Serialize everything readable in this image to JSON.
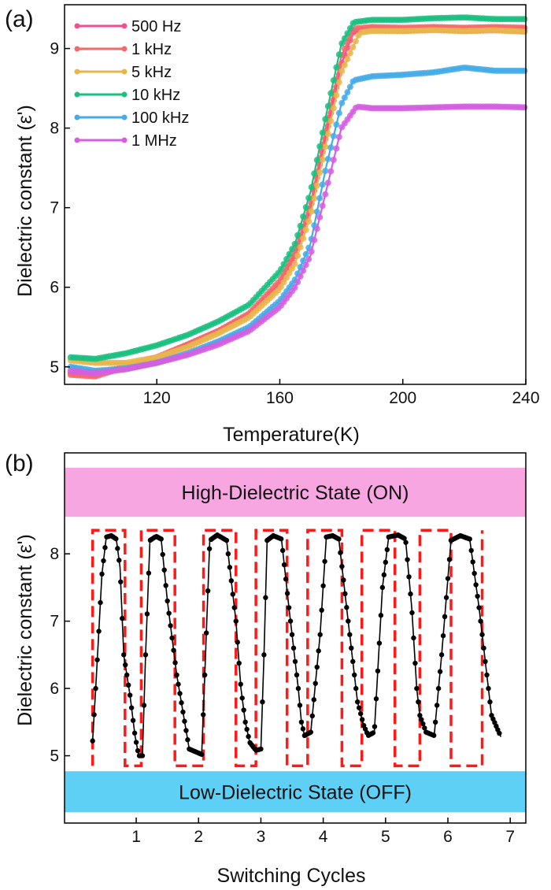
{
  "chart_data": [
    {
      "panel_label": "(a)",
      "type": "line",
      "xlabel": "Temperature(K)",
      "ylabel": "Dielectric constant (ε')",
      "xlim": [
        90,
        240
      ],
      "ylim": [
        4.78,
        9.55
      ],
      "xticks": [
        120,
        160,
        200,
        240
      ],
      "yticks": [
        5,
        6,
        7,
        8,
        9
      ],
      "grid": false,
      "legend_position": "top-left",
      "series": [
        {
          "name": "500 Hz",
          "color": "#f0508f",
          "x": [
            92,
            100,
            110,
            120,
            130,
            140,
            150,
            160,
            165,
            170,
            175,
            180,
            184,
            190,
            200,
            210,
            220,
            230,
            240
          ],
          "y": [
            4.92,
            4.9,
            5.0,
            5.12,
            5.28,
            5.45,
            5.65,
            6.05,
            6.4,
            7.0,
            7.9,
            8.8,
            9.22,
            9.24,
            9.22,
            9.24,
            9.22,
            9.23,
            9.22
          ]
        },
        {
          "name": "1 kHz",
          "color": "#f46a6a",
          "x": [
            92,
            100,
            110,
            120,
            130,
            140,
            150,
            160,
            165,
            170,
            175,
            180,
            184,
            190,
            200,
            210,
            220,
            230,
            240
          ],
          "y": [
            4.9,
            4.88,
            5.0,
            5.12,
            5.28,
            5.45,
            5.67,
            6.08,
            6.45,
            7.05,
            8.0,
            8.9,
            9.25,
            9.27,
            9.26,
            9.27,
            9.26,
            9.27,
            9.26
          ]
        },
        {
          "name": "5 kHz",
          "color": "#e9b64e",
          "x": [
            92,
            100,
            110,
            120,
            130,
            140,
            150,
            160,
            165,
            170,
            175,
            180,
            186,
            190,
            200,
            210,
            220,
            230,
            240
          ],
          "y": [
            5.08,
            5.05,
            5.05,
            5.12,
            5.25,
            5.42,
            5.62,
            5.98,
            6.3,
            6.9,
            7.8,
            8.7,
            9.2,
            9.22,
            9.22,
            9.23,
            9.22,
            9.23,
            9.21
          ]
        },
        {
          "name": "10 kHz",
          "color": "#1bbf80",
          "x": [
            92,
            100,
            110,
            120,
            130,
            140,
            150,
            160,
            165,
            170,
            175,
            180,
            184,
            190,
            200,
            210,
            220,
            230,
            240
          ],
          "y": [
            5.12,
            5.1,
            5.17,
            5.27,
            5.4,
            5.57,
            5.78,
            6.2,
            6.55,
            7.2,
            8.15,
            9.05,
            9.33,
            9.36,
            9.36,
            9.38,
            9.39,
            9.37,
            9.37
          ]
        },
        {
          "name": "100 kHz",
          "color": "#45abe8",
          "x": [
            92,
            100,
            110,
            120,
            130,
            140,
            150,
            160,
            165,
            170,
            175,
            180,
            184,
            190,
            200,
            210,
            220,
            230,
            240
          ],
          "y": [
            5.0,
            4.95,
            4.98,
            5.05,
            5.17,
            5.32,
            5.5,
            5.83,
            6.1,
            6.55,
            7.5,
            8.3,
            8.6,
            8.65,
            8.67,
            8.7,
            8.76,
            8.72,
            8.72
          ]
        },
        {
          "name": "1 MHz",
          "color": "#d35fe0",
          "x": [
            92,
            100,
            110,
            120,
            130,
            140,
            150,
            160,
            165,
            170,
            175,
            180,
            185,
            190,
            200,
            210,
            220,
            230,
            240
          ],
          "y": [
            4.95,
            4.92,
            4.97,
            5.05,
            5.15,
            5.28,
            5.45,
            5.75,
            6.0,
            6.4,
            7.2,
            8.0,
            8.27,
            8.25,
            8.25,
            8.26,
            8.27,
            8.27,
            8.26
          ]
        }
      ]
    },
    {
      "panel_label": "(b)",
      "type": "line",
      "xlabel": "Switching Cycles",
      "ylabel": "Dielectric constant (ε')",
      "xlim": [
        -0.15,
        7.25
      ],
      "ylim": [
        4.0,
        9.5
      ],
      "xticks": [
        1,
        2,
        3,
        4,
        5,
        6,
        7
      ],
      "yticks": [
        5,
        6,
        7,
        8
      ],
      "grid": false,
      "bands": [
        {
          "label": "High-Dielectric State (ON)",
          "color": "#f7a6e1",
          "y_range": [
            8.55,
            9.28
          ]
        },
        {
          "label": "Low-Dielectric State (OFF)",
          "color": "#5fd0f5",
          "y_range": [
            4.16,
            4.77
          ]
        }
      ],
      "series": [
        {
          "color": "#000000",
          "x": [
            0.3,
            0.35,
            0.45,
            0.52,
            0.6,
            0.68,
            0.74,
            0.8,
            0.9,
            0.98,
            1.04,
            1.1,
            1.15,
            1.22,
            1.32,
            1.4,
            1.5,
            1.65,
            1.85,
            2.05,
            2.1,
            2.18,
            2.3,
            2.45,
            2.6,
            2.68,
            2.75,
            2.82,
            2.92,
            3.0,
            3.05,
            3.1,
            3.2,
            3.33,
            3.45,
            3.6,
            3.65,
            3.7,
            3.8,
            3.95,
            4.05,
            4.15,
            4.25,
            4.4,
            4.55,
            4.65,
            4.72,
            4.82,
            4.95,
            5.05,
            5.2,
            5.32,
            5.42,
            5.5,
            5.55,
            5.65,
            5.78,
            5.9,
            6.05,
            6.2,
            6.35,
            6.5,
            6.7,
            6.85
          ],
          "y": [
            5.22,
            6.0,
            7.7,
            8.25,
            8.27,
            8.22,
            7.8,
            6.5,
            5.9,
            5.3,
            5.0,
            5.0,
            6.5,
            8.2,
            8.26,
            8.22,
            7.3,
            6.2,
            5.1,
            5.02,
            6.2,
            8.2,
            8.28,
            8.2,
            7.0,
            6.0,
            5.5,
            5.2,
            5.08,
            5.1,
            6.5,
            8.2,
            8.27,
            8.22,
            7.2,
            6.0,
            5.5,
            5.3,
            5.35,
            6.8,
            8.25,
            8.27,
            8.22,
            7.0,
            5.8,
            5.45,
            5.3,
            5.35,
            7.5,
            8.25,
            8.28,
            8.22,
            7.2,
            6.0,
            5.6,
            5.35,
            5.3,
            6.5,
            8.2,
            8.27,
            8.22,
            7.2,
            5.6,
            5.28
          ]
        }
      ],
      "square_wave": {
        "color": "#ff1a1a",
        "low": 4.85,
        "high": 8.35,
        "edges": [
          0.3,
          0.82,
          1.08,
          1.62,
          2.08,
          2.6,
          2.92,
          3.42,
          3.75,
          4.3,
          4.62,
          5.15,
          5.55,
          6.05,
          6.55
        ]
      }
    }
  ]
}
